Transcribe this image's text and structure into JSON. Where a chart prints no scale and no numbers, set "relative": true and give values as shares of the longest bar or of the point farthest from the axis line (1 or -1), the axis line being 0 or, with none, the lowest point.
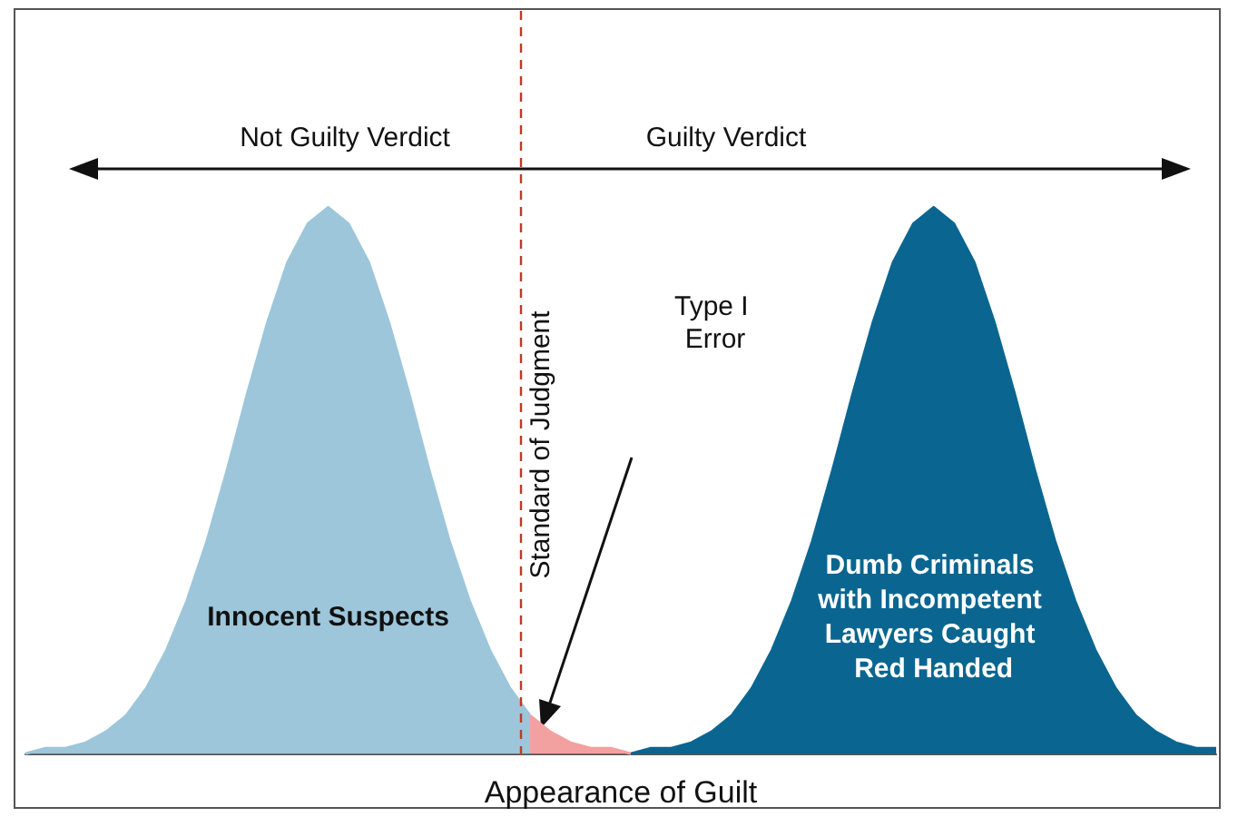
{
  "chart_data": {
    "type": "area",
    "relative": true,
    "xlabel": "Appearance of Guilt",
    "categories": [
      null,
      null,
      null,
      null,
      null,
      null,
      null,
      null,
      null,
      null,
      null,
      null,
      null,
      null,
      null,
      null,
      null,
      null,
      null,
      null,
      null,
      null,
      null,
      null,
      null,
      null,
      null,
      null,
      null,
      null,
      null,
      null,
      null,
      null,
      null,
      null,
      null,
      null,
      null,
      null,
      null,
      null,
      null,
      null,
      null,
      null,
      null,
      null,
      null,
      null,
      null,
      null,
      null,
      null,
      null,
      null,
      null,
      null,
      null,
      null
    ],
    "series": [
      {
        "name": "Innocent Suspects",
        "color": "#9dc6da",
        "values": [
          0.0,
          0.01,
          0.01,
          0.02,
          0.04,
          0.07,
          0.12,
          0.19,
          0.28,
          0.39,
          0.52,
          0.66,
          0.79,
          0.9,
          0.97,
          1,
          0.97,
          0.9,
          0.79,
          0.66,
          0.52,
          0.39,
          0.28,
          0.19,
          0.12,
          0.07,
          null,
          null,
          null,
          null,
          null,
          null,
          null,
          null,
          null,
          null,
          null,
          null,
          null,
          null,
          null,
          null,
          null,
          null,
          null,
          null,
          null,
          null,
          null,
          null,
          null,
          null,
          null,
          null,
          null,
          null,
          null,
          null,
          null,
          null
        ]
      },
      {
        "color": "#f2a0a0",
        "values": [
          null,
          null,
          null,
          null,
          null,
          null,
          null,
          null,
          null,
          null,
          null,
          null,
          null,
          null,
          null,
          null,
          null,
          null,
          null,
          null,
          null,
          null,
          null,
          null,
          null,
          0.07,
          0.04,
          0.02,
          0.01,
          0.01,
          0.0,
          null,
          null,
          null,
          null,
          null,
          null,
          null,
          null,
          null,
          null,
          null,
          null,
          null,
          null,
          null,
          null,
          null,
          null,
          null,
          null,
          null,
          null,
          null,
          null,
          null,
          null,
          null,
          null,
          null
        ]
      },
      {
        "name": "Dumb Criminals with Incompetent Lawyers Caught Red Handed",
        "color": "#0a6690",
        "values": [
          null,
          null,
          null,
          null,
          null,
          null,
          null,
          null,
          null,
          null,
          null,
          null,
          null,
          null,
          null,
          null,
          null,
          null,
          null,
          null,
          null,
          null,
          null,
          null,
          null,
          null,
          null,
          null,
          null,
          null,
          0.0,
          0.01,
          0.01,
          0.02,
          0.04,
          0.07,
          0.12,
          0.19,
          0.28,
          0.39,
          0.52,
          0.66,
          0.79,
          0.9,
          0.97,
          1,
          0.97,
          0.9,
          0.79,
          0.66,
          0.52,
          0.39,
          0.28,
          0.19,
          0.12,
          0.07,
          0.04,
          0.02,
          0.01,
          0.01
        ]
      }
    ],
    "annotations": [
      "Not Guilty Verdict",
      "Guilty Verdict",
      "Type I Error",
      "Standard of Judgment"
    ]
  }
}
